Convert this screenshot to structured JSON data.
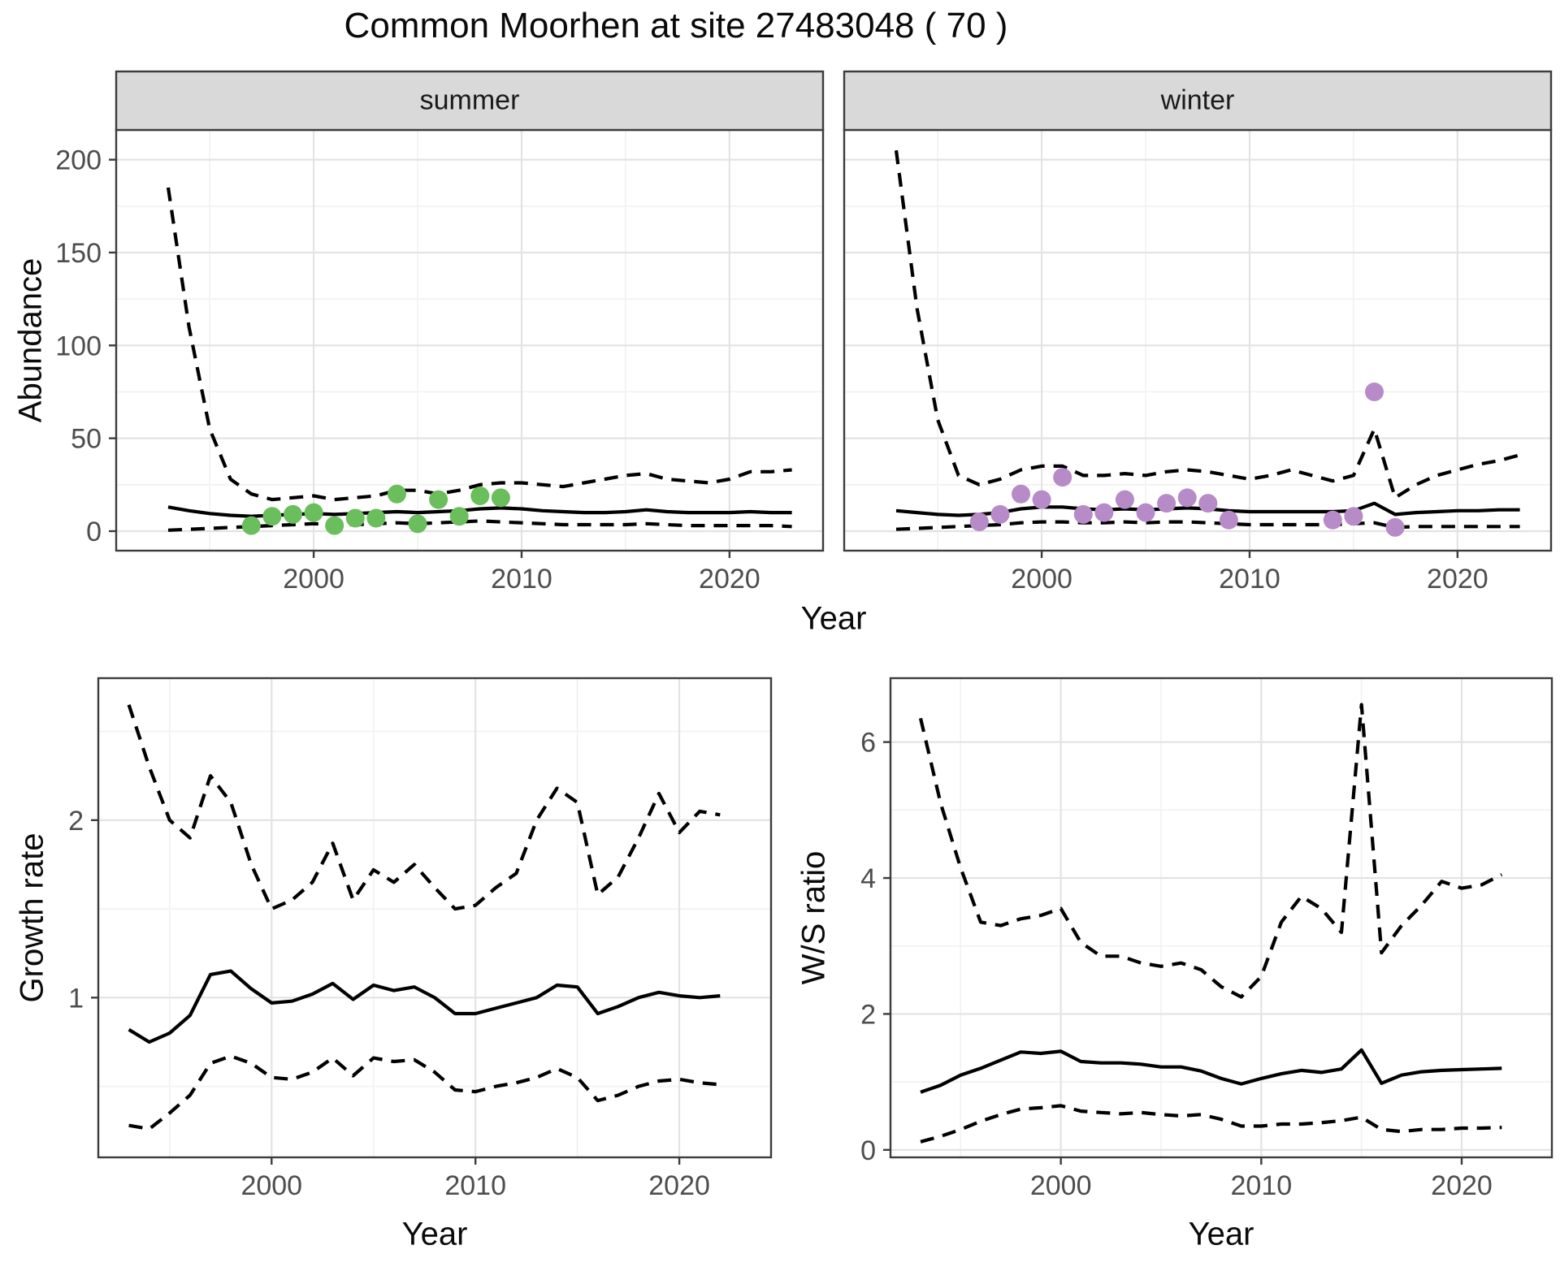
{
  "title": "Common Moorhen at site 27483048 ( 70 )",
  "colors": {
    "panel_border": "#3c3c3c",
    "strip_bg": "#d9d9d9",
    "grid_major": "#e3e3e3",
    "grid_minor": "#f1f1f1",
    "line": "#000000",
    "tick_text": "#4d4d4d",
    "summer_point": "#6abe5b",
    "winter_point": "#b68bc7"
  },
  "chart_data": [
    {
      "type": "line",
      "id": "abundance",
      "ylabel": "Abundance",
      "xlabel": "Year",
      "yticks": [
        0,
        50,
        100,
        150,
        200
      ],
      "xticks": [
        2000,
        2010,
        2020
      ],
      "xlim": [
        1990.5,
        2024.5
      ],
      "ylim": [
        -10.5,
        216
      ],
      "grid": true,
      "facets": [
        {
          "label": "summer",
          "point_color": "#6abe5b",
          "years": [
            1993,
            1994,
            1995,
            1996,
            1997,
            1998,
            1999,
            2000,
            2001,
            2002,
            2003,
            2004,
            2005,
            2006,
            2007,
            2008,
            2009,
            2010,
            2011,
            2012,
            2013,
            2014,
            2015,
            2016,
            2017,
            2018,
            2019,
            2020,
            2021,
            2022,
            2023
          ],
          "series": [
            {
              "name": "lower_90CI",
              "style": "dashed",
              "values": [
                0.5,
                1,
                1.5,
                2,
                2.5,
                3,
                3.5,
                4,
                3.5,
                3.5,
                4,
                4.5,
                4,
                4.5,
                5,
                5.5,
                5,
                4.5,
                4,
                3.5,
                3.5,
                3.5,
                3.5,
                4,
                3.5,
                3,
                3,
                3,
                3,
                3,
                2.5
              ]
            },
            {
              "name": "median",
              "style": "solid",
              "values": [
                13,
                11,
                9.5,
                8.5,
                8,
                8.5,
                9,
                9.5,
                9,
                9.5,
                10,
                10.5,
                10,
                10.5,
                11,
                12,
                12.5,
                12,
                11,
                10.5,
                10,
                10,
                10.5,
                11.5,
                10.5,
                10,
                10,
                10,
                10.5,
                10,
                10
              ]
            },
            {
              "name": "upper_90CI",
              "style": "dashed",
              "values": [
                185,
                110,
                55,
                28,
                20,
                17,
                18,
                19,
                17,
                18,
                19,
                22,
                22,
                20,
                22,
                25,
                26,
                26,
                25,
                24,
                26,
                28,
                30,
                31,
                28,
                27,
                26,
                28,
                32,
                32,
                33
              ]
            }
          ],
          "points": {
            "years": [
              1997,
              1998,
              1999,
              2000,
              2001,
              2002,
              2003,
              2004,
              2005,
              2006,
              2007,
              2008,
              2009
            ],
            "values": [
              3,
              8,
              9,
              10,
              3,
              7,
              7,
              20,
              4,
              17,
              8,
              19,
              18
            ]
          }
        },
        {
          "label": "winter",
          "point_color": "#b68bc7",
          "years": [
            1993,
            1994,
            1995,
            1996,
            1997,
            1998,
            1999,
            2000,
            2001,
            2002,
            2003,
            2004,
            2005,
            2006,
            2007,
            2008,
            2009,
            2010,
            2011,
            2012,
            2013,
            2014,
            2015,
            2016,
            2017,
            2018,
            2019,
            2020,
            2021,
            2022,
            2023
          ],
          "series": [
            {
              "name": "lower_90CI",
              "style": "dashed",
              "values": [
                1,
                1.5,
                2,
                2.5,
                3,
                3.5,
                4.5,
                5,
                5,
                4.5,
                4.5,
                5,
                4.5,
                5,
                5,
                4.5,
                4,
                3.5,
                3.5,
                3.5,
                3.5,
                3.5,
                4,
                4.5,
                2,
                2.5,
                2.5,
                2.5,
                2.5,
                2.5,
                2.5
              ]
            },
            {
              "name": "median",
              "style": "solid",
              "values": [
                11,
                10,
                9,
                8.5,
                9,
                10,
                12,
                13,
                13,
                12,
                11.5,
                12,
                11.5,
                12,
                12.5,
                12,
                11,
                10.5,
                10.5,
                10.5,
                10.5,
                10.5,
                11,
                15,
                9,
                10,
                10.5,
                11,
                11,
                11.5,
                11.5
              ]
            },
            {
              "name": "upper_90CI",
              "style": "dashed",
              "values": [
                205,
                120,
                60,
                30,
                25,
                28,
                33,
                35,
                35,
                30,
                30,
                31,
                30,
                32,
                33,
                32,
                30,
                28,
                30,
                33,
                30,
                27,
                30,
                55,
                18,
                25,
                30,
                33,
                36,
                38,
                41
              ]
            }
          ],
          "points": {
            "years": [
              1997,
              1998,
              1999,
              2000,
              2001,
              2002,
              2003,
              2004,
              2005,
              2006,
              2007,
              2008,
              2009,
              2014,
              2015,
              2016,
              2017
            ],
            "values": [
              5,
              9,
              20,
              17,
              29,
              9,
              10,
              17,
              10,
              15,
              18,
              15,
              6,
              6,
              8,
              75,
              2
            ]
          }
        }
      ]
    },
    {
      "type": "line",
      "id": "growth_rate",
      "ylabel": "Growth rate",
      "xlabel": "Year",
      "yticks": [
        1,
        2
      ],
      "xticks": [
        2000,
        2010,
        2020
      ],
      "xlim": [
        1991.5,
        2024.5
      ],
      "ylim": [
        0.1,
        2.8
      ],
      "grid": true,
      "years": [
        1993,
        1994,
        1995,
        1996,
        1997,
        1998,
        1999,
        2000,
        2001,
        2002,
        2003,
        2004,
        2005,
        2006,
        2007,
        2008,
        2009,
        2010,
        2011,
        2012,
        2013,
        2014,
        2015,
        2016,
        2017,
        2018,
        2019,
        2020,
        2021,
        2022
      ],
      "series": [
        {
          "name": "lower_90CI",
          "style": "dashed",
          "values": [
            0.28,
            0.26,
            0.35,
            0.45,
            0.63,
            0.67,
            0.63,
            0.55,
            0.54,
            0.58,
            0.66,
            0.56,
            0.66,
            0.64,
            0.65,
            0.58,
            0.48,
            0.47,
            0.5,
            0.52,
            0.55,
            0.6,
            0.55,
            0.42,
            0.45,
            0.5,
            0.53,
            0.54,
            0.52,
            0.51
          ]
        },
        {
          "name": "median",
          "style": "solid",
          "values": [
            0.82,
            0.75,
            0.8,
            0.9,
            1.13,
            1.15,
            1.05,
            0.97,
            0.98,
            1.02,
            1.08,
            0.99,
            1.07,
            1.04,
            1.06,
            1.0,
            0.91,
            0.91,
            0.94,
            0.97,
            1.0,
            1.07,
            1.06,
            0.91,
            0.95,
            1.0,
            1.03,
            1.01,
            1.0,
            1.01
          ]
        },
        {
          "name": "upper_90CI",
          "style": "dashed",
          "values": [
            2.65,
            2.3,
            2.0,
            1.9,
            2.25,
            2.1,
            1.75,
            1.5,
            1.55,
            1.65,
            1.87,
            1.55,
            1.72,
            1.65,
            1.75,
            1.62,
            1.5,
            1.52,
            1.62,
            1.7,
            2.0,
            2.18,
            2.1,
            1.58,
            1.68,
            1.9,
            2.15,
            1.93,
            2.05,
            2.03
          ]
        }
      ]
    },
    {
      "type": "line",
      "id": "ws_ratio",
      "ylabel": "W/S ratio",
      "xlabel": "Year",
      "yticks": [
        0,
        2,
        4,
        6
      ],
      "xticks": [
        2000,
        2010,
        2020
      ],
      "xlim": [
        1991.5,
        2024.5
      ],
      "ylim": [
        -0.11,
        6.94
      ],
      "grid": true,
      "years": [
        1993,
        1994,
        1995,
        1996,
        1997,
        1998,
        1999,
        2000,
        2001,
        2002,
        2003,
        2004,
        2005,
        2006,
        2007,
        2008,
        2009,
        2010,
        2011,
        2012,
        2013,
        2014,
        2015,
        2016,
        2017,
        2018,
        2019,
        2020,
        2021,
        2022
      ],
      "series": [
        {
          "name": "lower_90CI",
          "style": "dashed",
          "values": [
            0.12,
            0.2,
            0.3,
            0.42,
            0.52,
            0.6,
            0.62,
            0.65,
            0.57,
            0.55,
            0.53,
            0.55,
            0.52,
            0.5,
            0.52,
            0.45,
            0.35,
            0.35,
            0.38,
            0.38,
            0.4,
            0.43,
            0.48,
            0.3,
            0.27,
            0.3,
            0.3,
            0.32,
            0.32,
            0.33
          ]
        },
        {
          "name": "median",
          "style": "solid",
          "values": [
            0.85,
            0.95,
            1.1,
            1.2,
            1.32,
            1.44,
            1.42,
            1.45,
            1.3,
            1.28,
            1.28,
            1.26,
            1.22,
            1.22,
            1.16,
            1.05,
            0.97,
            1.05,
            1.12,
            1.17,
            1.14,
            1.19,
            1.47,
            0.98,
            1.1,
            1.15,
            1.17,
            1.18,
            1.19,
            1.2
          ]
        },
        {
          "name": "upper_90CI",
          "style": "dashed",
          "values": [
            6.35,
            5.1,
            4.15,
            3.35,
            3.3,
            3.4,
            3.45,
            3.55,
            3.05,
            2.85,
            2.85,
            2.75,
            2.7,
            2.75,
            2.65,
            2.4,
            2.25,
            2.55,
            3.35,
            3.73,
            3.55,
            3.2,
            6.55,
            2.9,
            3.3,
            3.6,
            3.95,
            3.85,
            3.9,
            4.05
          ]
        }
      ]
    }
  ]
}
